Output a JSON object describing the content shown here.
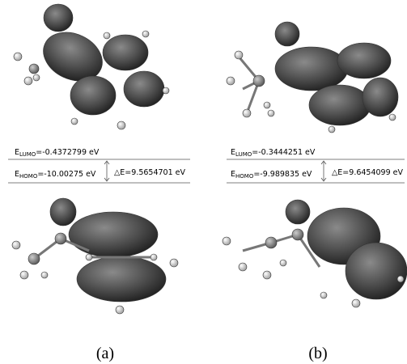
{
  "panels": [
    {
      "lumo": {
        "symbol": "E",
        "sub": "LUMO",
        "value": "=-0.4372799 eV"
      },
      "homo": {
        "symbol": "E",
        "sub": "HOMO",
        "value": "=-10.00275 eV"
      },
      "delta": "△E=9.5654701 eV",
      "caption": "(a)"
    },
    {
      "lumo": {
        "symbol": "E",
        "sub": "LUMO",
        "value": "=-0.3444251 eV"
      },
      "homo": {
        "symbol": "E",
        "sub": "HOMO",
        "value": "=-9.989835 eV"
      },
      "delta": "△E=9.6454099 eV",
      "caption": "(b)"
    }
  ]
}
